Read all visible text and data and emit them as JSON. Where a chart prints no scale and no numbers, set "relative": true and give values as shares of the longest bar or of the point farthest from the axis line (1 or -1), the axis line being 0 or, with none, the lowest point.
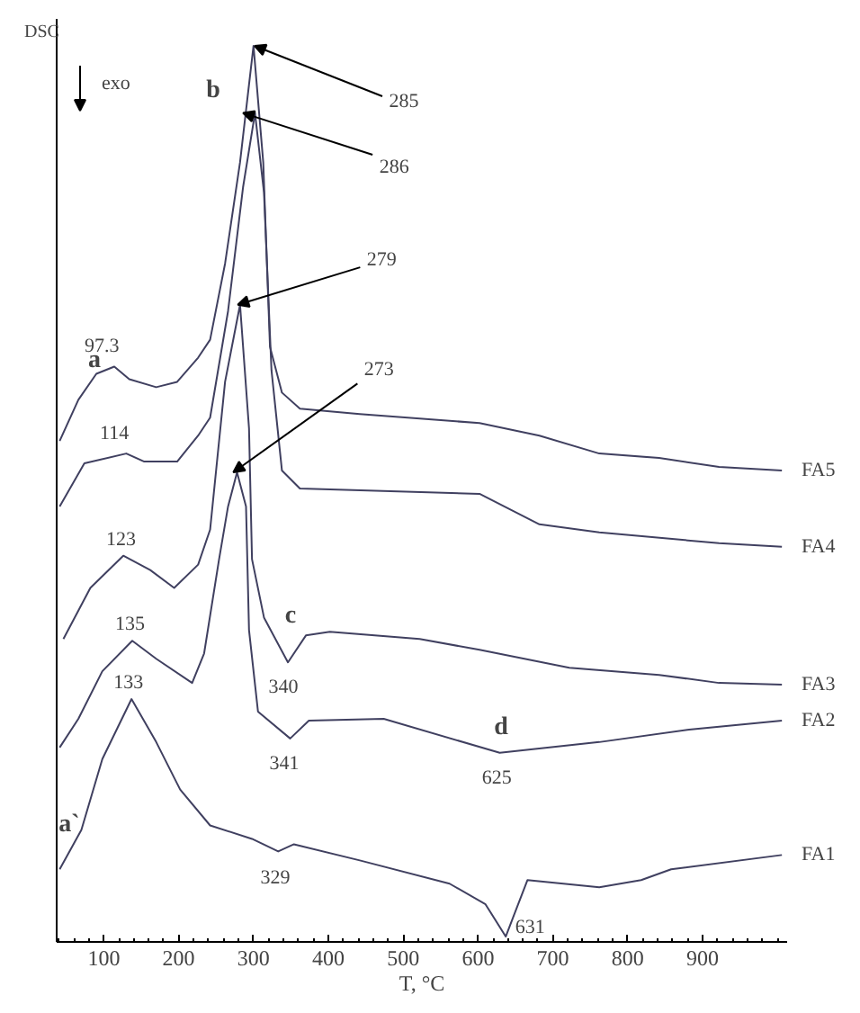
{
  "chart_data": {
    "type": "line",
    "relative": true,
    "ylabel": "DSC",
    "xlabel": "T, °C",
    "xlim": [
      37,
      1013
    ],
    "xticks": [
      100,
      200,
      300,
      400,
      500,
      600,
      700,
      800,
      900
    ],
    "grid": false,
    "marker": "none",
    "line_style": "solid",
    "series": [
      {
        "name": "FA5",
        "color": "#404060",
        "x": [
          41,
          66,
          90,
          114,
          134,
          170,
          198,
          226,
          242,
          262,
          282,
          300,
          313,
          322,
          338,
          362,
          442,
          602,
          682,
          762,
          842,
          922,
          1006
        ],
        "values": [
          0.559,
          0.605,
          0.634,
          0.642,
          0.628,
          0.619,
          0.625,
          0.652,
          0.672,
          0.757,
          0.87,
          1.0,
          0.87,
          0.664,
          0.613,
          0.595,
          0.589,
          0.579,
          0.565,
          0.545,
          0.54,
          0.53,
          0.526
        ]
      },
      {
        "name": "FA4",
        "color": "#404060",
        "x": [
          41,
          74,
          130,
          154,
          198,
          226,
          242,
          266,
          286,
          302,
          314,
          324,
          338,
          362,
          602,
          682,
          762,
          922,
          1006
        ],
        "values": [
          0.486,
          0.534,
          0.545,
          0.536,
          0.536,
          0.565,
          0.585,
          0.704,
          0.842,
          0.925,
          0.836,
          0.638,
          0.526,
          0.506,
          0.5,
          0.466,
          0.457,
          0.445,
          0.441
        ]
      },
      {
        "name": "FA3",
        "color": "#404060",
        "x": [
          46,
          82,
          126,
          162,
          194,
          226,
          242,
          262,
          282,
          294,
          298,
          314,
          346,
          370,
          402,
          522,
          602,
          722,
          842,
          922,
          1006
        ],
        "values": [
          0.338,
          0.395,
          0.431,
          0.415,
          0.395,
          0.421,
          0.46,
          0.625,
          0.711,
          0.573,
          0.427,
          0.362,
          0.312,
          0.342,
          0.346,
          0.338,
          0.326,
          0.306,
          0.298,
          0.289,
          0.287
        ]
      },
      {
        "name": "FA2",
        "color": "#404060",
        "x": [
          41,
          66,
          98,
          138,
          170,
          218,
          234,
          254,
          266,
          278,
          290,
          294,
          306,
          349,
          374,
          474,
          629,
          762,
          882,
          1006
        ],
        "values": [
          0.217,
          0.249,
          0.302,
          0.336,
          0.316,
          0.289,
          0.322,
          0.427,
          0.486,
          0.524,
          0.486,
          0.348,
          0.257,
          0.227,
          0.247,
          0.249,
          0.211,
          0.223,
          0.237,
          0.247
        ]
      },
      {
        "name": "FA1",
        "color": "#404060",
        "x": [
          41,
          70,
          98,
          137,
          170,
          202,
          242,
          298,
          333,
          354,
          442,
          562,
          610,
          637,
          666,
          762,
          818,
          858,
          1006
        ],
        "values": [
          0.081,
          0.125,
          0.204,
          0.271,
          0.223,
          0.17,
          0.13,
          0.115,
          0.101,
          0.109,
          0.091,
          0.065,
          0.042,
          0.006,
          0.069,
          0.061,
          0.069,
          0.081,
          0.097
        ]
      }
    ],
    "annotations": [
      {
        "text": "97.3",
        "x": 97.3,
        "y": 0.642
      },
      {
        "text": "114",
        "x": 114,
        "y": 0.545
      },
      {
        "text": "123",
        "x": 123,
        "y": 0.431
      },
      {
        "text": "135",
        "x": 135,
        "y": 0.336
      },
      {
        "text": "133",
        "x": 133,
        "y": 0.271
      },
      "285",
      {
        "text": "286",
        "x": 286,
        "y": 0.925
      },
      {
        "text": "279",
        "x": 279,
        "y": 0.711
      },
      {
        "text": "273",
        "x": 273,
        "y": 0.524
      },
      {
        "text": "340",
        "x": 340,
        "y": 0.312
      },
      {
        "text": "341",
        "x": 341,
        "y": 0.227
      },
      {
        "text": "625",
        "x": 625,
        "y": 0.211
      },
      {
        "text": "329",
        "x": 329,
        "y": 0.101
      },
      {
        "text": "631",
        "x": 631,
        "y": 0.006
      },
      "a",
      "b",
      "c",
      "d",
      "a`",
      "exo"
    ]
  }
}
